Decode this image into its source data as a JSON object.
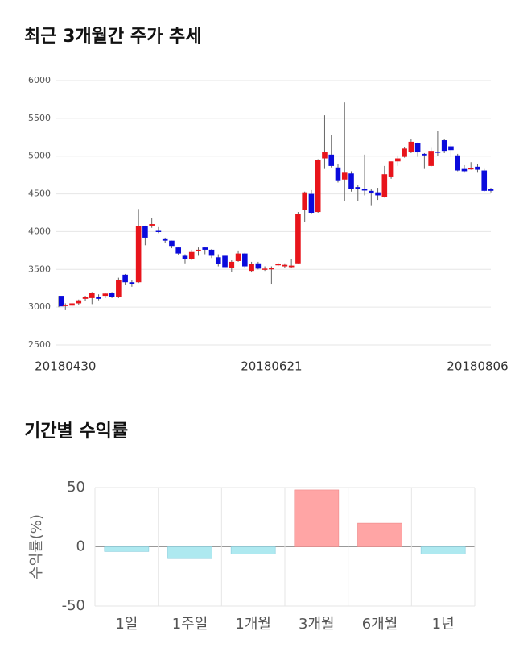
{
  "chart_data": [
    {
      "type": "candlestick",
      "title": "최근 3개월간 주가 추세",
      "categories": [
        null,
        "20180430",
        null,
        null,
        null,
        null,
        null,
        null,
        null,
        null,
        null,
        null,
        null,
        null,
        null,
        null,
        null,
        null,
        null,
        null,
        null,
        null,
        null,
        null,
        null,
        null,
        null,
        null,
        null,
        null,
        null,
        null,
        "20180621",
        null,
        null,
        null,
        null,
        null,
        null,
        null,
        null,
        null,
        null,
        null,
        null,
        null,
        null,
        null,
        null,
        null,
        null,
        null,
        null,
        null,
        null,
        null,
        null,
        null,
        null,
        null,
        null,
        null,
        null,
        "20180806",
        null,
        null
      ],
      "open": [
        3150,
        3020,
        3020,
        3050,
        3110,
        3120,
        3140,
        3150,
        3190,
        3130,
        3430,
        3330,
        3330,
        4070,
        4080,
        4010,
        3910,
        3880,
        3790,
        3680,
        3640,
        3750,
        3790,
        3760,
        3660,
        3680,
        3520,
        3610,
        3710,
        3480,
        3580,
        3500,
        3500,
        3560,
        3540,
        3530,
        3580,
        4290,
        4500,
        4260,
        4970,
        5020,
        4850,
        4690,
        4770,
        4590,
        4560,
        4540,
        4520,
        4460,
        4720,
        4930,
        4990,
        5050,
        5170,
        5030,
        4870,
        5060,
        5210,
        5130,
        5010,
        4830,
        4830,
        4860,
        4810,
        4560
      ],
      "high": [
        3150,
        3050,
        3060,
        3100,
        3150,
        3200,
        3170,
        3190,
        3200,
        3390,
        3440,
        3360,
        4300,
        4080,
        4180,
        4060,
        3920,
        3880,
        3800,
        3700,
        3760,
        3790,
        3800,
        3770,
        3700,
        3690,
        3620,
        3750,
        3720,
        3600,
        3600,
        3540,
        3540,
        3590,
        3580,
        3640,
        4260,
        4530,
        4550,
        4960,
        5540,
        5280,
        4890,
        5710,
        4800,
        4620,
        5020,
        4570,
        4580,
        4870,
        4930,
        5010,
        5120,
        5230,
        5180,
        5040,
        5110,
        5330,
        5230,
        5160,
        5030,
        4880,
        4920,
        4900,
        4830,
        4580
      ],
      "low": [
        3000,
        2960,
        3000,
        3030,
        3080,
        3040,
        3090,
        3120,
        3120,
        3120,
        3290,
        3270,
        3320,
        3820,
        4050,
        3980,
        3850,
        3780,
        3690,
        3580,
        3620,
        3680,
        3700,
        3650,
        3540,
        3520,
        3470,
        3600,
        3520,
        3460,
        3500,
        3480,
        3300,
        3540,
        3520,
        3520,
        3580,
        4130,
        4230,
        4250,
        4830,
        4850,
        4650,
        4400,
        4530,
        4400,
        4480,
        4350,
        4420,
        4450,
        4700,
        4870,
        4980,
        5040,
        4990,
        4830,
        4860,
        5000,
        5040,
        4990,
        4800,
        4780,
        4820,
        4780,
        4530,
        4520
      ],
      "close": [
        3010,
        3030,
        3050,
        3090,
        3130,
        3190,
        3110,
        3180,
        3130,
        3360,
        3330,
        3310,
        4070,
        3920,
        4100,
        4000,
        3880,
        3810,
        3710,
        3640,
        3730,
        3760,
        3760,
        3680,
        3570,
        3530,
        3600,
        3710,
        3540,
        3570,
        3510,
        3510,
        3520,
        3570,
        3560,
        3550,
        4230,
        4520,
        4250,
        4950,
        5050,
        4870,
        4680,
        4780,
        4560,
        4570,
        4550,
        4510,
        4480,
        4760,
        4930,
        4970,
        5100,
        5190,
        5050,
        5010,
        5070,
        5050,
        5070,
        5080,
        4810,
        4800,
        4840,
        4820,
        4540,
        4540
      ],
      "up_color": "#e8141b",
      "down_color": "#0a0adc",
      "ylim": [
        2500,
        6000
      ],
      "yticks": [
        2500,
        3000,
        3500,
        4000,
        4500,
        5000,
        5500,
        6000
      ],
      "grid": true
    },
    {
      "type": "bar",
      "title": "기간별 수익률",
      "y_label": "수익률(%)",
      "categories": [
        "1일",
        "1주일",
        "1개월",
        "3개월",
        "6개월",
        "1년"
      ],
      "values": [
        -4,
        -10,
        -6,
        48,
        20,
        -6
      ],
      "positive_color": "#ffa5a5",
      "negative_color": "#aee9f0",
      "ylim": [
        -50,
        50
      ],
      "yticks": [
        -50,
        0,
        50
      ],
      "grid": true
    }
  ]
}
